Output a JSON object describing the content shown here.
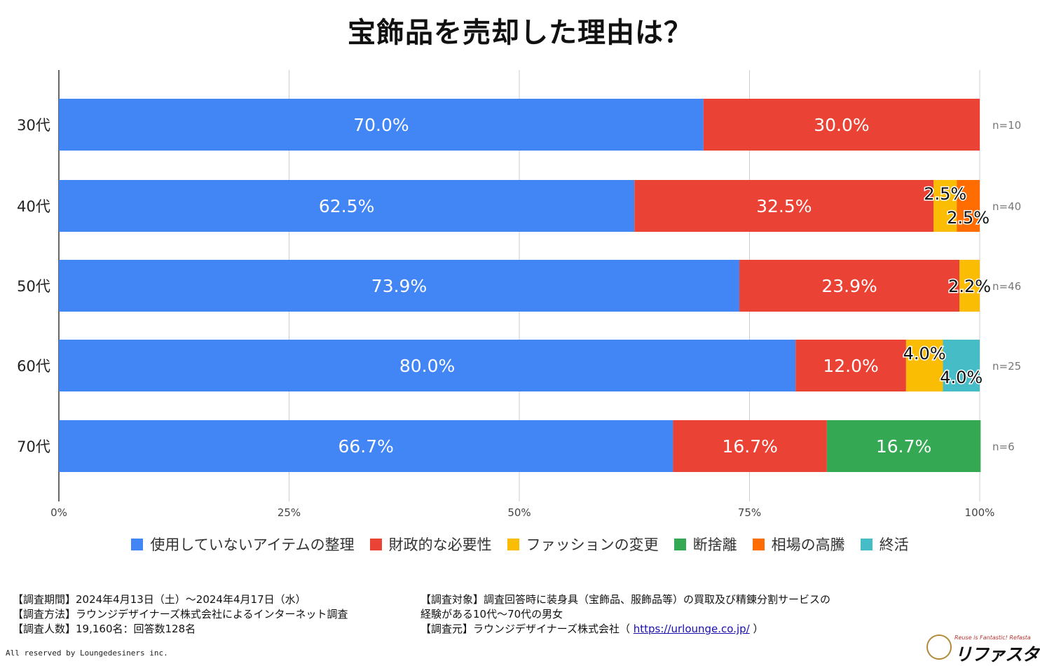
{
  "chart_data": {
    "type": "bar",
    "orientation": "horizontal",
    "stacked": true,
    "title": "宝飾品を売却した理由は？",
    "categories": [
      "30代",
      "40代",
      "50代",
      "60代",
      "70代"
    ],
    "sample_sizes": [
      "n=10",
      "n=40",
      "n=46",
      "n=25",
      "n=6"
    ],
    "x_ticks": [
      "0%",
      "25%",
      "50%",
      "75%",
      "100%"
    ],
    "xlim": [
      0,
      100
    ],
    "series": [
      {
        "name": "使用していないアイテムの整理",
        "color": "#4285F4",
        "values": [
          70.0,
          62.5,
          73.9,
          80.0,
          66.7
        ]
      },
      {
        "name": "財政的な必要性",
        "color": "#EA4335",
        "values": [
          30.0,
          32.5,
          23.9,
          12.0,
          16.7
        ]
      },
      {
        "name": "ファッションの変更",
        "color": "#FBBC04",
        "values": [
          0,
          2.5,
          2.2,
          4.0,
          0
        ]
      },
      {
        "name": "断捨離",
        "color": "#34A853",
        "values": [
          0,
          0,
          0,
          0,
          16.7
        ]
      },
      {
        "name": "相場の高騰",
        "color": "#FF6D01",
        "values": [
          0,
          2.5,
          0,
          0,
          0
        ]
      },
      {
        "name": "終活",
        "color": "#46BDC6",
        "values": [
          0,
          0,
          0,
          4.0,
          0
        ]
      }
    ],
    "legend_position": "bottom"
  },
  "notes_left": [
    "【調査期間】2024年4月13日（土）～2024年4月17日（水）",
    "【調査方法】ラウンジデザイナーズ株式会社によるインターネット調査",
    "【調査人数】19,160名：回答数128名"
  ],
  "notes_right": {
    "line1": "【調査対象】調査回答時に装身具（宝飾品、服飾品等）の買取及び精錬分割サービスの",
    "line2": "経験がある10代～70代の男女",
    "line3_prefix": "【調査元】ラウンジデザイナーズ株式会社（ ",
    "line3_link": "https://urlounge.co.jp/",
    "line3_suffix": " ）"
  },
  "copyright": "All reserved by Loungedesiners inc.",
  "brand": {
    "tagline": "Reuse is Fantastic! Refasta",
    "name": "リファスタ"
  }
}
